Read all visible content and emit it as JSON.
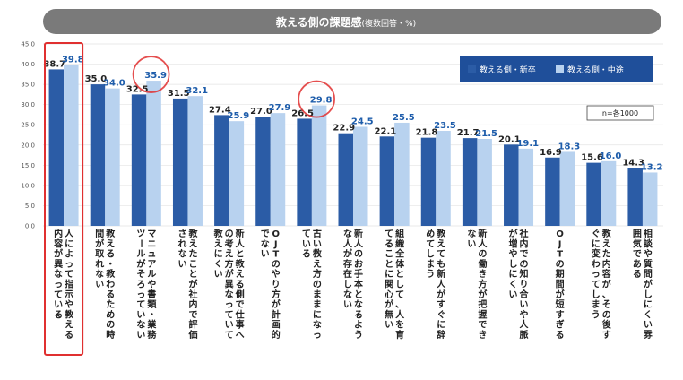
{
  "colors": {
    "series_new": "#2b5ca6",
    "series_mid": "#b8d2ef",
    "label_new": "#222222",
    "label_mid": "#1e5dab",
    "title_bar": "#7a7a7a",
    "legend_bg": "#1f4f9a",
    "highlight_box": "#e03030",
    "highlight_circle": "#e03030",
    "grid": "#e3e3e3"
  },
  "chart_data": {
    "type": "bar",
    "title": "教える側の課題感",
    "title_suffix": "(複数回答・%)",
    "ylim": [
      0,
      45
    ],
    "yticks": [
      "0.0",
      "5.0",
      "10.0",
      "15.0",
      "20.0",
      "25.0",
      "30.0",
      "35.0",
      "40.0",
      "45.0"
    ],
    "grid": true,
    "legend_position": "top-right",
    "note": "n=各1000",
    "categories": [
      "人によって指示や教える内容が異なっている",
      "教える・教わるための時間が取れない",
      "マニュアルや書類・業務ツールがそろっていない",
      "教えたことが社内で評価されない",
      "新人と教える側で仕事への考え方が異なっていて教えにくい",
      "OJTのやり方が計画的でない",
      "古い教え方のままになっている",
      "新人のお手本となるような人が存在しない",
      "組織全体として、人を育てることに関心が無い",
      "教えても新人がすぐに辞めてしまう",
      "新人の働き方が把握できない",
      "社内での知り合いや人脈が増やしにくい",
      "OJTの期間が短すぎる",
      "教えた内容が、その後すぐに変わってしまう",
      "相談や質問がしにくい雰囲気である"
    ],
    "series": [
      {
        "name": "教える側・新卒",
        "values": [
          38.7,
          35.0,
          32.5,
          31.5,
          27.4,
          27.0,
          26.5,
          22.9,
          22.1,
          21.8,
          21.7,
          20.1,
          16.9,
          15.6,
          14.3
        ]
      },
      {
        "name": "教える側・中途",
        "values": [
          39.8,
          34.0,
          35.9,
          32.1,
          25.9,
          27.9,
          29.8,
          24.5,
          25.5,
          23.5,
          21.5,
          19.1,
          18.3,
          16.0,
          13.2
        ]
      }
    ],
    "annotations": {
      "boxed_category_index": 0,
      "circled": [
        {
          "category_index": 2,
          "series_index": 1
        },
        {
          "category_index": 6,
          "series_index": 1
        }
      ]
    }
  }
}
